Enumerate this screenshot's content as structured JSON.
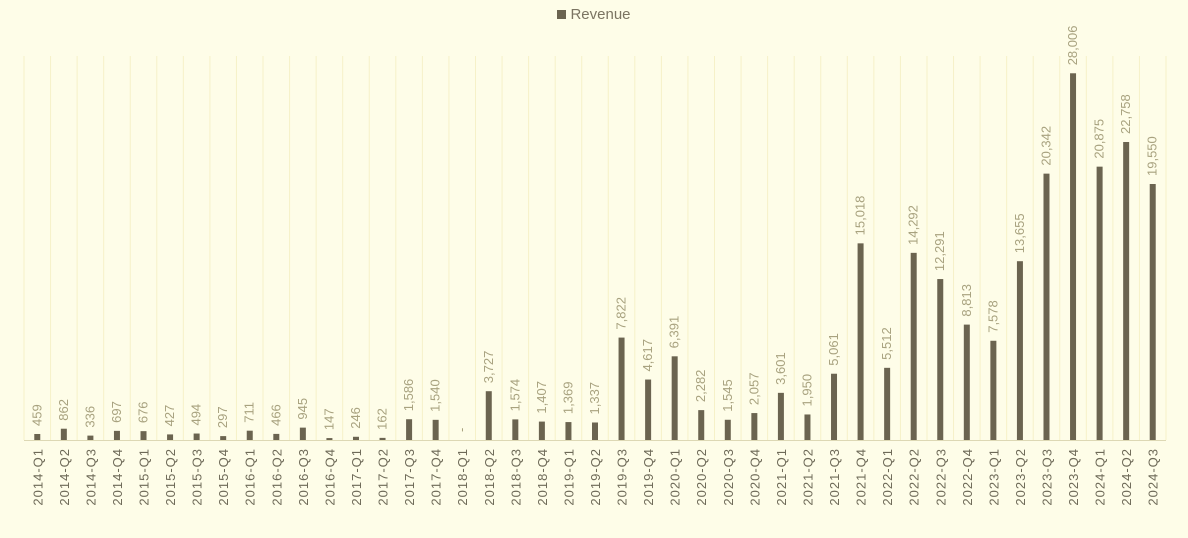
{
  "colors": {
    "background": "#fefde8",
    "bar": "#6b6450",
    "gridline": "#f6f1c8",
    "data_label": "#a8a27f",
    "tick_label": "#6e6a58"
  },
  "chart_data": {
    "type": "bar",
    "legend_position": "top",
    "grid": true,
    "categories": [
      "2014-Q1",
      "2014-Q2",
      "2014-Q3",
      "2014-Q4",
      "2015-Q1",
      "2015-Q2",
      "2015-Q3",
      "2015-Q4",
      "2016-Q1",
      "2016-Q2",
      "2016-Q3",
      "2016-Q4",
      "2017-Q1",
      "2017-Q2",
      "2017-Q3",
      "2017-Q4",
      "2018-Q1",
      "2018-Q2",
      "2018-Q3",
      "2018-Q4",
      "2019-Q1",
      "2019-Q2",
      "2019-Q3",
      "2019-Q4",
      "2020-Q1",
      "2020-Q2",
      "2020-Q3",
      "2020-Q4",
      "2021-Q1",
      "2021-Q2",
      "2021-Q3",
      "2021-Q4",
      "2022-Q1",
      "2022-Q2",
      "2022-Q3",
      "2022-Q4",
      "2023-Q1",
      "2023-Q2",
      "2023-Q3",
      "2023-Q4",
      "2024-Q1",
      "2024-Q2",
      "2024-Q3"
    ],
    "series": [
      {
        "name": "Revenue",
        "values": [
          459,
          862,
          336,
          697,
          676,
          427,
          494,
          297,
          711,
          466,
          945,
          147,
          246,
          162,
          1586,
          1540,
          0,
          3727,
          1574,
          1407,
          1369,
          1337,
          7822,
          4617,
          6391,
          2282,
          1545,
          2057,
          3601,
          1950,
          5061,
          15018,
          5512,
          14292,
          12291,
          8813,
          7578,
          13655,
          20342,
          28006,
          20875,
          22758,
          19550
        ],
        "labels": [
          "459",
          "862",
          "336",
          "697",
          "676",
          "427",
          "494",
          "297",
          "711",
          "466",
          "945",
          "147",
          "246",
          "162",
          "1,586",
          "1,540",
          "-",
          "3,727",
          "1,574",
          "1,407",
          "1,369",
          "1,337",
          "7,822",
          "4,617",
          "6,391",
          "2,282",
          "1,545",
          "2,057",
          "3,601",
          "1,950",
          "5,061",
          "15,018",
          "5,512",
          "14,292",
          "12,291",
          "8,813",
          "7,578",
          "13,655",
          "20,342",
          "28,006",
          "20,875",
          "22,758",
          "19,550"
        ]
      }
    ],
    "ylim": [
      0,
      30000
    ]
  }
}
